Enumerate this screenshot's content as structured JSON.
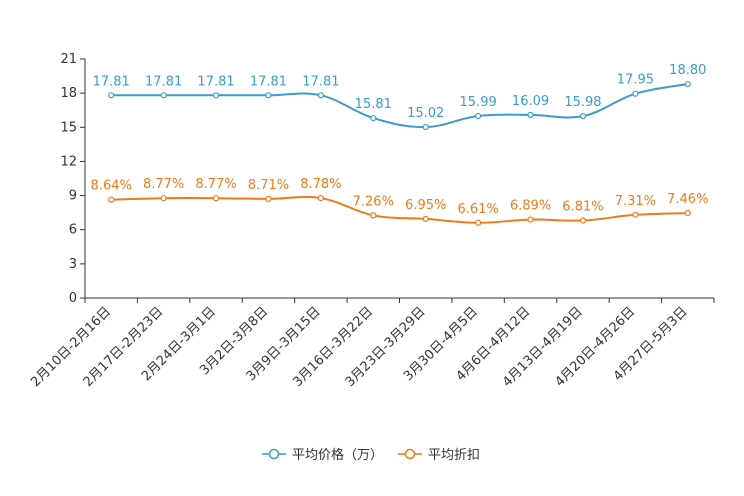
{
  "chart_data": {
    "type": "line",
    "title": "",
    "xlabel": "",
    "ylabel": "",
    "ylim": [
      0,
      21
    ],
    "yticks": [
      0,
      3,
      6,
      9,
      12,
      15,
      18,
      21
    ],
    "categories": [
      "2月10日-2月16日",
      "2月17日-2月23日",
      "2月24日-3月1日",
      "3月2日-3月8日",
      "3月9日-3月15日",
      "3月16日-3月22日",
      "3月23日-3月29日",
      "3月30日-4月5日",
      "4月6日-4月12日",
      "4月13日-4月19日",
      "4月20日-4月26日",
      "4月27日-5月3日"
    ],
    "series": [
      {
        "name": "平均价格（万）",
        "color": "#3a9ccc",
        "values": [
          17.81,
          17.81,
          17.81,
          17.81,
          17.81,
          15.81,
          15.02,
          15.99,
          16.09,
          15.98,
          17.95,
          18.8
        ],
        "labels": [
          "17.81",
          "17.81",
          "17.81",
          "17.81",
          "17.81",
          "15.81",
          "15.02",
          "15.99",
          "16.09",
          "15.98",
          "17.95",
          "18.80"
        ]
      },
      {
        "name": "平均折扣",
        "color": "#f07a1a",
        "values": [
          8.64,
          8.77,
          8.77,
          8.71,
          8.78,
          7.26,
          6.95,
          6.61,
          6.89,
          6.81,
          7.31,
          7.46
        ],
        "labels": [
          "8.64%",
          "8.77%",
          "8.77%",
          "8.71%",
          "8.78%",
          "7.26%",
          "6.95%",
          "6.61%",
          "6.89%",
          "6.81%",
          "7.31%",
          "7.46%"
        ]
      }
    ],
    "legend_position": "bottom-center"
  }
}
